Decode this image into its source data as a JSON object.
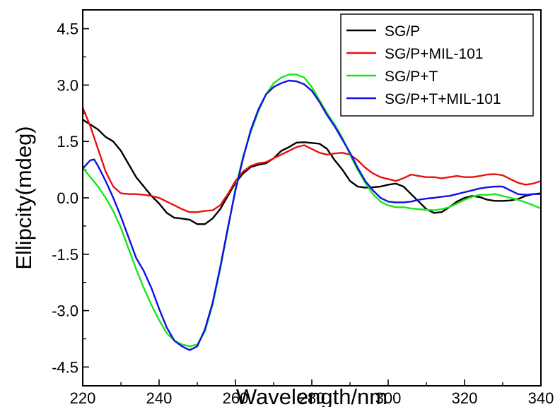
{
  "chart_data": {
    "type": "line",
    "title": "",
    "xlabel": "Wavelength/nm",
    "ylabel": "Ellipcity(mdeg)",
    "xlim": [
      220,
      340
    ],
    "ylim": [
      -5.0,
      5.0
    ],
    "x_ticks": [
      220,
      240,
      260,
      280,
      300,
      320,
      340
    ],
    "x_tick_labels": [
      "220",
      "240",
      "260",
      "280",
      "300",
      "320",
      "340"
    ],
    "y_ticks": [
      -4.5,
      -3.0,
      -1.5,
      0.0,
      1.5,
      3.0,
      4.5
    ],
    "y_tick_labels": [
      "-4.5",
      "-3.0",
      "-1.5",
      "0.0",
      "1.5",
      "3.0",
      "4.5"
    ],
    "grid": false,
    "legend_position": "top-right",
    "series": [
      {
        "name": "SG/P",
        "color": "#000000",
        "points": [
          [
            220,
            2.08
          ],
          [
            222,
            1.95
          ],
          [
            224,
            1.82
          ],
          [
            226,
            1.62
          ],
          [
            228,
            1.5
          ],
          [
            230,
            1.25
          ],
          [
            232,
            0.9
          ],
          [
            234,
            0.55
          ],
          [
            236,
            0.3
          ],
          [
            238,
            0.05
          ],
          [
            240,
            -0.15
          ],
          [
            242,
            -0.4
          ],
          [
            244,
            -0.53
          ],
          [
            246,
            -0.55
          ],
          [
            248,
            -0.58
          ],
          [
            250,
            -0.7
          ],
          [
            252,
            -0.7
          ],
          [
            254,
            -0.55
          ],
          [
            256,
            -0.3
          ],
          [
            258,
            0.05
          ],
          [
            260,
            0.4
          ],
          [
            262,
            0.65
          ],
          [
            264,
            0.82
          ],
          [
            266,
            0.88
          ],
          [
            268,
            0.92
          ],
          [
            270,
            1.05
          ],
          [
            272,
            1.25
          ],
          [
            274,
            1.35
          ],
          [
            276,
            1.47
          ],
          [
            278,
            1.48
          ],
          [
            280,
            1.46
          ],
          [
            282,
            1.44
          ],
          [
            284,
            1.3
          ],
          [
            286,
            1.0
          ],
          [
            288,
            0.75
          ],
          [
            290,
            0.45
          ],
          [
            292,
            0.3
          ],
          [
            294,
            0.27
          ],
          [
            296,
            0.28
          ],
          [
            298,
            0.3
          ],
          [
            300,
            0.35
          ],
          [
            302,
            0.38
          ],
          [
            304,
            0.3
          ],
          [
            306,
            0.1
          ],
          [
            308,
            -0.1
          ],
          [
            310,
            -0.3
          ],
          [
            312,
            -0.4
          ],
          [
            314,
            -0.38
          ],
          [
            316,
            -0.25
          ],
          [
            318,
            -0.1
          ],
          [
            320,
            0.0
          ],
          [
            322,
            0.05
          ],
          [
            324,
            0.02
          ],
          [
            326,
            -0.05
          ],
          [
            328,
            -0.08
          ],
          [
            330,
            -0.08
          ],
          [
            332,
            -0.07
          ],
          [
            334,
            -0.03
          ],
          [
            336,
            0.05
          ],
          [
            338,
            0.1
          ],
          [
            340,
            0.12
          ]
        ]
      },
      {
        "name": "SG/P+MIL-101",
        "color": "#e8110f",
        "points": [
          [
            220,
            2.4
          ],
          [
            222,
            1.9
          ],
          [
            224,
            1.3
          ],
          [
            226,
            0.7
          ],
          [
            228,
            0.3
          ],
          [
            230,
            0.12
          ],
          [
            232,
            0.1
          ],
          [
            234,
            0.1
          ],
          [
            236,
            0.08
          ],
          [
            238,
            0.05
          ],
          [
            240,
            0.0
          ],
          [
            242,
            -0.1
          ],
          [
            244,
            -0.2
          ],
          [
            246,
            -0.3
          ],
          [
            248,
            -0.38
          ],
          [
            250,
            -0.38
          ],
          [
            252,
            -0.35
          ],
          [
            254,
            -0.33
          ],
          [
            256,
            -0.2
          ],
          [
            258,
            0.1
          ],
          [
            260,
            0.45
          ],
          [
            262,
            0.7
          ],
          [
            264,
            0.85
          ],
          [
            266,
            0.92
          ],
          [
            268,
            0.95
          ],
          [
            270,
            1.05
          ],
          [
            272,
            1.15
          ],
          [
            274,
            1.25
          ],
          [
            276,
            1.35
          ],
          [
            278,
            1.4
          ],
          [
            280,
            1.3
          ],
          [
            282,
            1.2
          ],
          [
            284,
            1.15
          ],
          [
            286,
            1.18
          ],
          [
            288,
            1.2
          ],
          [
            290,
            1.15
          ],
          [
            292,
            1.0
          ],
          [
            294,
            0.8
          ],
          [
            296,
            0.65
          ],
          [
            298,
            0.55
          ],
          [
            300,
            0.5
          ],
          [
            302,
            0.45
          ],
          [
            304,
            0.52
          ],
          [
            306,
            0.62
          ],
          [
            308,
            0.58
          ],
          [
            310,
            0.55
          ],
          [
            312,
            0.55
          ],
          [
            314,
            0.52
          ],
          [
            316,
            0.55
          ],
          [
            318,
            0.58
          ],
          [
            320,
            0.55
          ],
          [
            322,
            0.55
          ],
          [
            324,
            0.58
          ],
          [
            326,
            0.62
          ],
          [
            328,
            0.63
          ],
          [
            330,
            0.6
          ],
          [
            332,
            0.5
          ],
          [
            334,
            0.4
          ],
          [
            336,
            0.35
          ],
          [
            338,
            0.38
          ],
          [
            340,
            0.45
          ]
        ]
      },
      {
        "name": "SG/P+T",
        "color": "#19e619",
        "points": [
          [
            220,
            0.8
          ],
          [
            222,
            0.55
          ],
          [
            224,
            0.3
          ],
          [
            226,
            0.0
          ],
          [
            228,
            -0.35
          ],
          [
            230,
            -0.8
          ],
          [
            232,
            -1.35
          ],
          [
            234,
            -1.9
          ],
          [
            236,
            -2.4
          ],
          [
            238,
            -2.85
          ],
          [
            240,
            -3.25
          ],
          [
            242,
            -3.6
          ],
          [
            244,
            -3.8
          ],
          [
            246,
            -3.9
          ],
          [
            248,
            -3.95
          ],
          [
            250,
            -3.9
          ],
          [
            252,
            -3.55
          ],
          [
            254,
            -2.85
          ],
          [
            256,
            -1.9
          ],
          [
            258,
            -0.85
          ],
          [
            260,
            0.25
          ],
          [
            262,
            1.1
          ],
          [
            264,
            1.75
          ],
          [
            266,
            2.3
          ],
          [
            268,
            2.75
          ],
          [
            270,
            3.05
          ],
          [
            272,
            3.2
          ],
          [
            274,
            3.28
          ],
          [
            276,
            3.28
          ],
          [
            278,
            3.2
          ],
          [
            280,
            2.95
          ],
          [
            282,
            2.6
          ],
          [
            284,
            2.25
          ],
          [
            286,
            1.95
          ],
          [
            288,
            1.6
          ],
          [
            290,
            1.15
          ],
          [
            292,
            0.75
          ],
          [
            294,
            0.4
          ],
          [
            296,
            0.1
          ],
          [
            298,
            -0.1
          ],
          [
            300,
            -0.2
          ],
          [
            302,
            -0.25
          ],
          [
            304,
            -0.25
          ],
          [
            306,
            -0.28
          ],
          [
            308,
            -0.3
          ],
          [
            310,
            -0.32
          ],
          [
            312,
            -0.33
          ],
          [
            314,
            -0.3
          ],
          [
            316,
            -0.25
          ],
          [
            318,
            -0.15
          ],
          [
            320,
            -0.05
          ],
          [
            322,
            0.03
          ],
          [
            324,
            0.08
          ],
          [
            326,
            0.08
          ],
          [
            328,
            0.1
          ],
          [
            330,
            0.05
          ],
          [
            332,
            0.0
          ],
          [
            334,
            -0.05
          ],
          [
            336,
            -0.12
          ],
          [
            338,
            -0.2
          ],
          [
            340,
            -0.28
          ]
        ]
      },
      {
        "name": "SG/P+T+MIL-101",
        "color": "#1010e6",
        "points": [
          [
            220,
            0.78
          ],
          [
            222,
            1.0
          ],
          [
            223,
            1.02
          ],
          [
            224,
            0.85
          ],
          [
            226,
            0.45
          ],
          [
            228,
            0.0
          ],
          [
            230,
            -0.5
          ],
          [
            232,
            -1.05
          ],
          [
            234,
            -1.6
          ],
          [
            236,
            -1.95
          ],
          [
            238,
            -2.4
          ],
          [
            240,
            -2.95
          ],
          [
            242,
            -3.45
          ],
          [
            244,
            -3.8
          ],
          [
            246,
            -3.95
          ],
          [
            248,
            -4.05
          ],
          [
            250,
            -3.95
          ],
          [
            252,
            -3.5
          ],
          [
            254,
            -2.8
          ],
          [
            256,
            -1.85
          ],
          [
            258,
            -0.8
          ],
          [
            260,
            0.2
          ],
          [
            262,
            1.05
          ],
          [
            264,
            1.8
          ],
          [
            266,
            2.35
          ],
          [
            268,
            2.75
          ],
          [
            270,
            2.95
          ],
          [
            272,
            3.05
          ],
          [
            274,
            3.12
          ],
          [
            276,
            3.1
          ],
          [
            278,
            3.02
          ],
          [
            280,
            2.85
          ],
          [
            282,
            2.55
          ],
          [
            284,
            2.2
          ],
          [
            286,
            1.9
          ],
          [
            288,
            1.55
          ],
          [
            290,
            1.2
          ],
          [
            292,
            0.8
          ],
          [
            294,
            0.45
          ],
          [
            296,
            0.2
          ],
          [
            298,
            0.0
          ],
          [
            300,
            -0.1
          ],
          [
            302,
            -0.12
          ],
          [
            304,
            -0.12
          ],
          [
            306,
            -0.1
          ],
          [
            308,
            -0.05
          ],
          [
            310,
            -0.02
          ],
          [
            312,
            0.0
          ],
          [
            314,
            0.03
          ],
          [
            316,
            0.05
          ],
          [
            318,
            0.1
          ],
          [
            320,
            0.15
          ],
          [
            322,
            0.2
          ],
          [
            324,
            0.25
          ],
          [
            326,
            0.28
          ],
          [
            328,
            0.3
          ],
          [
            330,
            0.3
          ],
          [
            332,
            0.2
          ],
          [
            334,
            0.1
          ],
          [
            336,
            0.08
          ],
          [
            338,
            0.1
          ],
          [
            340,
            0.1
          ]
        ]
      }
    ]
  }
}
